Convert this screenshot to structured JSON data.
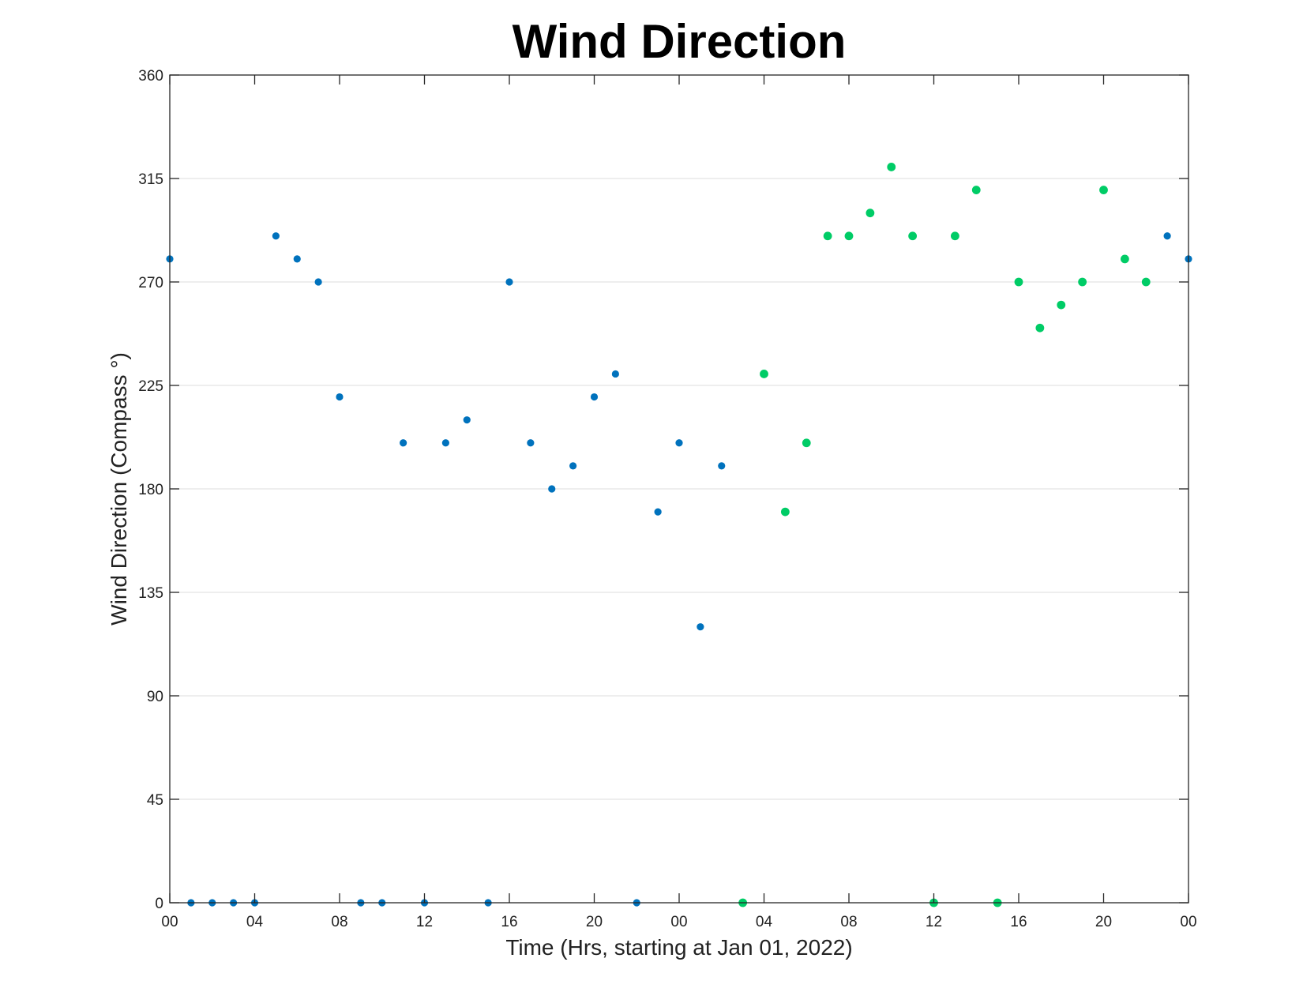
{
  "chart_data": {
    "type": "scatter",
    "title": "Wind Direction",
    "xlabel": "Time (Hrs, starting at Jan 01, 2022)",
    "ylabel": "Wind Direction (Compass °)",
    "x_unit": "hours",
    "xlim": [
      0,
      48
    ],
    "ylim": [
      0,
      360
    ],
    "x_ticks": [
      0,
      4,
      8,
      12,
      16,
      20,
      24,
      28,
      32,
      36,
      40,
      44,
      48
    ],
    "x_tick_labels": [
      "00",
      "04",
      "08",
      "12",
      "16",
      "20",
      "00",
      "04",
      "08",
      "12",
      "16",
      "20",
      "00"
    ],
    "y_ticks": [
      0,
      45,
      90,
      135,
      180,
      225,
      270,
      315,
      360
    ],
    "y_tick_labels": [
      "0",
      "45",
      "90",
      "135",
      "180",
      "225",
      "270",
      "315",
      "360"
    ],
    "grid": "horizontal",
    "series": [
      {
        "color": "#0072BD",
        "x": [
          0,
          1,
          2,
          3,
          4,
          5,
          6,
          7,
          8,
          9,
          10,
          11,
          12,
          13,
          14,
          15,
          16,
          17,
          18,
          19,
          20,
          21,
          22,
          23,
          24,
          25,
          26,
          47,
          48
        ],
        "y": [
          280,
          0,
          0,
          0,
          0,
          290,
          280,
          270,
          220,
          0,
          0,
          200,
          0,
          200,
          210,
          0,
          270,
          200,
          180,
          190,
          220,
          230,
          0,
          170,
          200,
          120,
          190,
          290,
          280
        ]
      },
      {
        "color": "#00CC66",
        "x": [
          27,
          28,
          29,
          30,
          31,
          32,
          33,
          34,
          35,
          36,
          37,
          38,
          39,
          40,
          41,
          42,
          43,
          44,
          45,
          46
        ],
        "y": [
          0,
          230,
          170,
          200,
          290,
          290,
          300,
          320,
          290,
          0,
          290,
          310,
          0,
          270,
          250,
          260,
          270,
          310,
          280,
          270
        ]
      }
    ]
  }
}
